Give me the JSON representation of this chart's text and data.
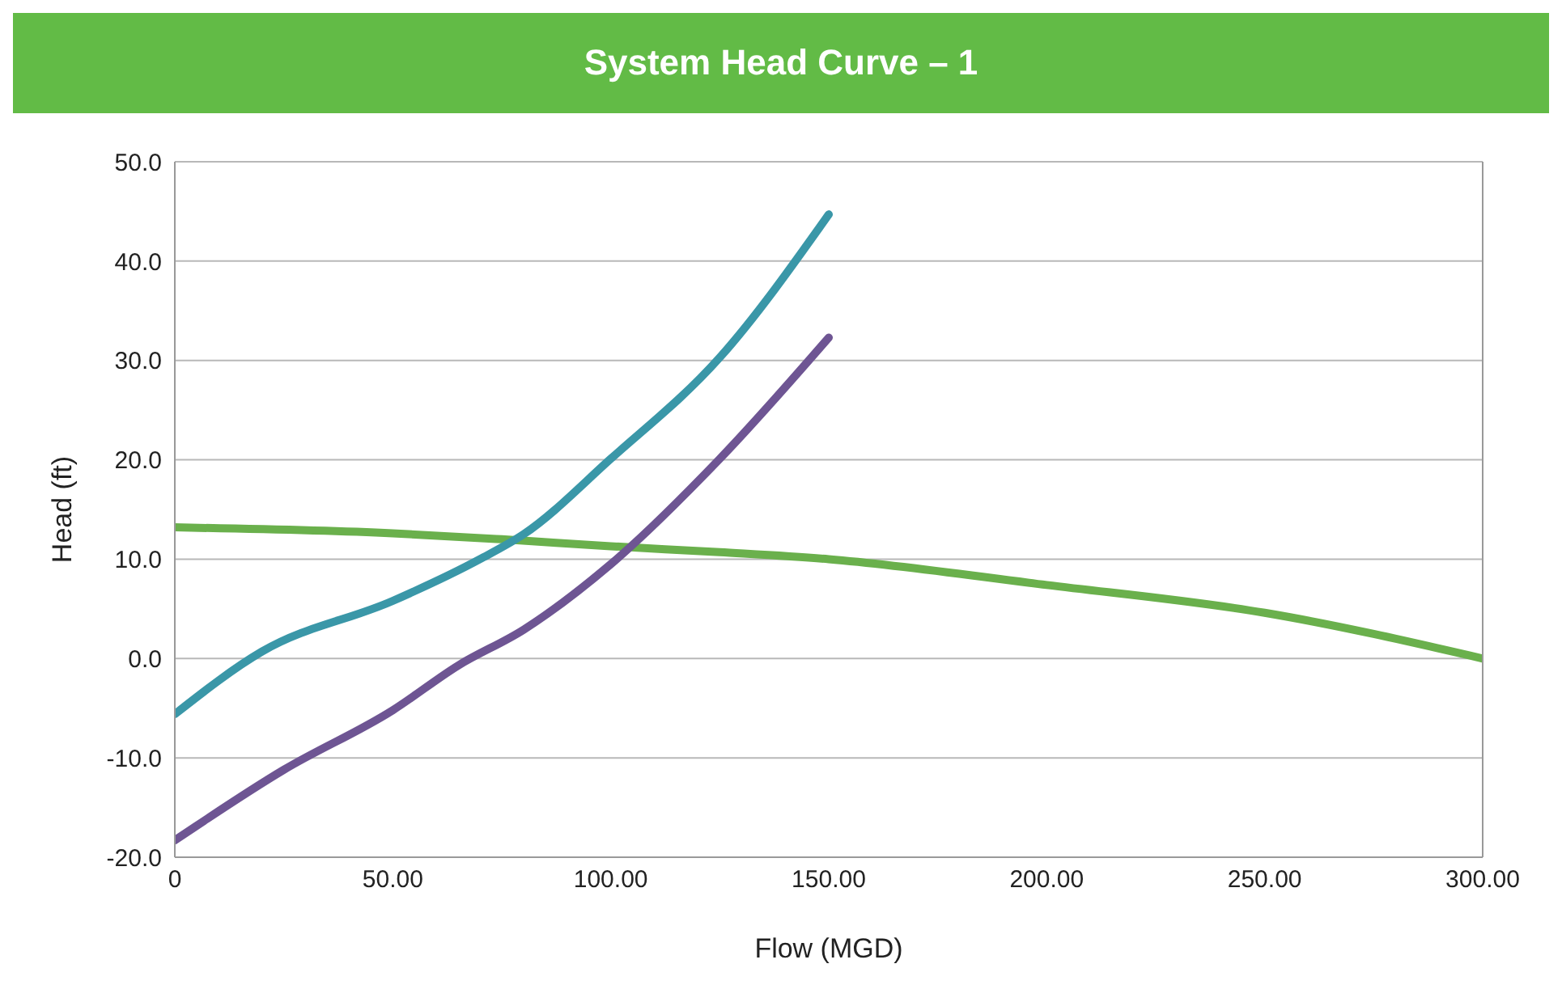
{
  "chart_data": {
    "type": "line",
    "title": "System Head Curve – 1",
    "xlabel": "Flow (MGD)",
    "ylabel": "Head (ft)",
    "xlim": [
      0,
      300
    ],
    "xticks": [
      {
        "value": 0,
        "label": "0"
      },
      {
        "value": 50,
        "label": "50.00"
      },
      {
        "value": 100,
        "label": "100.00"
      },
      {
        "value": 150,
        "label": "150.00"
      },
      {
        "value": 200,
        "label": "200.00"
      },
      {
        "value": 250,
        "label": "250.00"
      },
      {
        "value": 300,
        "label": "300.00"
      }
    ],
    "ylim": [
      -20,
      50
    ],
    "yticks": [
      {
        "value": -20,
        "label": "-20.0"
      },
      {
        "value": -10,
        "label": "-10.0"
      },
      {
        "value": 0,
        "label": "0.0"
      },
      {
        "value": 10,
        "label": "10.0"
      },
      {
        "value": 20,
        "label": "20.0"
      },
      {
        "value": 30,
        "label": "30.0"
      },
      {
        "value": 40,
        "label": "40.0"
      },
      {
        "value": 50,
        "label": "50.0"
      }
    ],
    "grid": "y",
    "legend": false,
    "marker": "none",
    "line_style": "solid",
    "series": [
      {
        "color": "#6ab04c",
        "x": [
          0,
          50,
          75,
          100,
          125,
          150,
          200,
          250,
          300
        ],
        "values": [
          13.2,
          12.6,
          12,
          11.3,
          10.7,
          10,
          7.4,
          4.6,
          0
        ]
      },
      {
        "color": "#3a97a8",
        "x": [
          0,
          20,
          50,
          70,
          80,
          100,
          125,
          150
        ],
        "values": [
          -5.6,
          0.7,
          5.8,
          10,
          12.5,
          20.1,
          30.3,
          44.7
        ]
      },
      {
        "color": "#6e5593",
        "x": [
          0,
          25,
          50,
          65,
          80,
          100,
          125,
          150
        ],
        "values": [
          -18.3,
          -11.2,
          -5.2,
          -0.7,
          2.9,
          9.5,
          20.1,
          32.3
        ]
      }
    ]
  }
}
